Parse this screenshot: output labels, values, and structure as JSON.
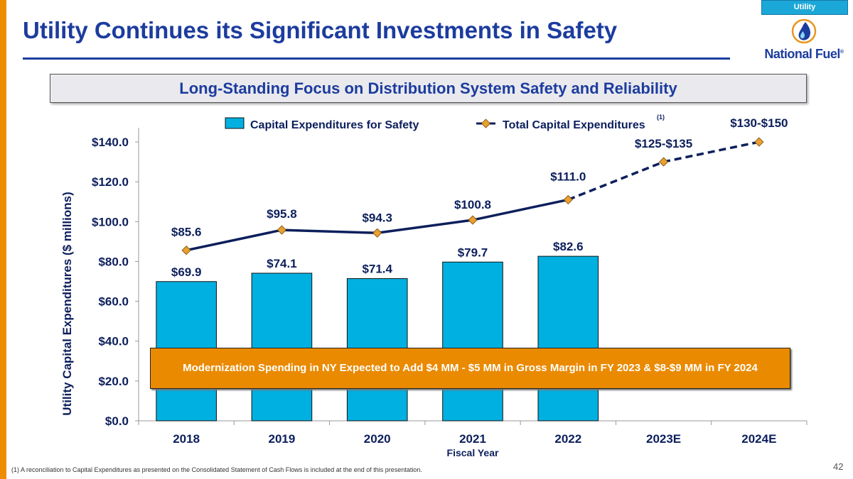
{
  "header": {
    "tag": "Utility",
    "title": "Utility Continues its Significant Investments in Safety",
    "logo_text": "National Fuel",
    "logo_mark": "®"
  },
  "subtitle": "Long-Standing Focus on Distribution System Safety and Reliability",
  "callout": "Modernization Spending in NY Expected to Add $4 MM - $5 MM in Gross Margin in FY 2023 & $8-$9 MM in FY 2024",
  "footnote": "(1)    A reconciliation to Capital Expenditures as presented on the Consolidated Statement of Cash Flows is included at the end of this presentation.",
  "page_number": "42",
  "colors": {
    "accent_orange": "#EE8C00",
    "brand_blue": "#1C3C9E",
    "bar_cyan": "#00B0E0",
    "line_navy": "#0C1F5C",
    "marker_orange": "#E8A030"
  },
  "chart_data": {
    "type": "bar",
    "title": "",
    "xlabel": "Fiscal Year",
    "ylabel": "Utility Capital Expenditures ($ millions)",
    "ylim": [
      0,
      140
    ],
    "yticks": [
      "$0.0",
      "$20.0",
      "$40.0",
      "$60.0",
      "$80.0",
      "$100.0",
      "$120.0",
      "$140.0"
    ],
    "ytick_values": [
      0,
      20,
      40,
      60,
      80,
      100,
      120,
      140
    ],
    "categories": [
      "2018",
      "2019",
      "2020",
      "2021",
      "2022",
      "2023E",
      "2024E"
    ],
    "legend_position": "top",
    "grid": false,
    "series": [
      {
        "name": "Capital Expenditures for Safety",
        "type": "bar",
        "values": [
          69.9,
          74.1,
          71.4,
          79.7,
          82.6,
          null,
          null
        ],
        "labels": [
          "$69.9",
          "$74.1",
          "$71.4",
          "$79.7",
          "$82.6",
          "",
          ""
        ]
      },
      {
        "name": "Total Capital Expenditures",
        "superscript": "(1)",
        "type": "line",
        "values": [
          85.6,
          95.8,
          94.3,
          100.8,
          111.0,
          130,
          140
        ],
        "labels": [
          "$85.6",
          "$95.8",
          "$94.3",
          "$100.8",
          "$111.0",
          "$125-$135",
          "$130-$150"
        ],
        "projected_from_index": 4
      }
    ]
  }
}
